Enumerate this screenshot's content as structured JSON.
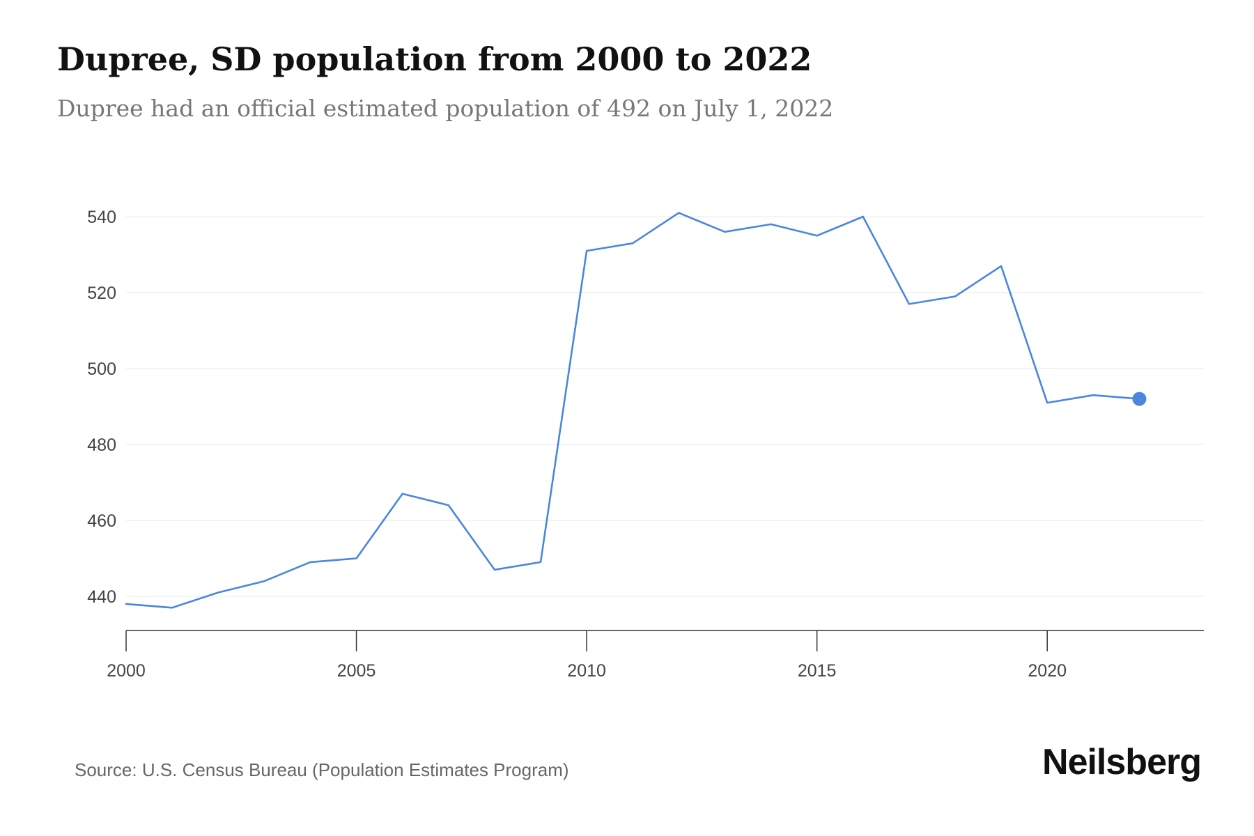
{
  "header": {
    "title": "Dupree, SD population from 2000 to 2022",
    "subtitle": "Dupree had an official estimated population of 492 on July 1, 2022"
  },
  "footer": {
    "source": "Source: U.S. Census Bureau (Population Estimates Program)",
    "brand": "Neilsberg"
  },
  "colors": {
    "line": "#4a86e0",
    "grid": "#ececec",
    "axis": "#333333",
    "tick_text": "#444444"
  },
  "chart_data": {
    "type": "line",
    "title": "Dupree, SD population from 2000 to 2022",
    "subtitle": "Dupree had an official estimated population of 492 on July 1, 2022",
    "xlabel": "",
    "ylabel": "",
    "x": [
      2000,
      2001,
      2002,
      2003,
      2004,
      2005,
      2006,
      2007,
      2008,
      2009,
      2010,
      2011,
      2012,
      2013,
      2014,
      2015,
      2016,
      2017,
      2018,
      2019,
      2020,
      2021,
      2022
    ],
    "series": [
      {
        "values": [
          438,
          437,
          441,
          444,
          449,
          450,
          467,
          464,
          447,
          449,
          531,
          533,
          541,
          536,
          538,
          535,
          540,
          517,
          519,
          527,
          491,
          493,
          492
        ]
      }
    ],
    "xlim": [
      2000,
      2023.4
    ],
    "ylim": [
      431,
      549
    ],
    "x_ticks": [
      2000,
      2005,
      2010,
      2015,
      2020
    ],
    "y_ticks": [
      440,
      460,
      480,
      500,
      520,
      540
    ],
    "grid": true,
    "legend": "none",
    "highlight_last_point": true
  }
}
